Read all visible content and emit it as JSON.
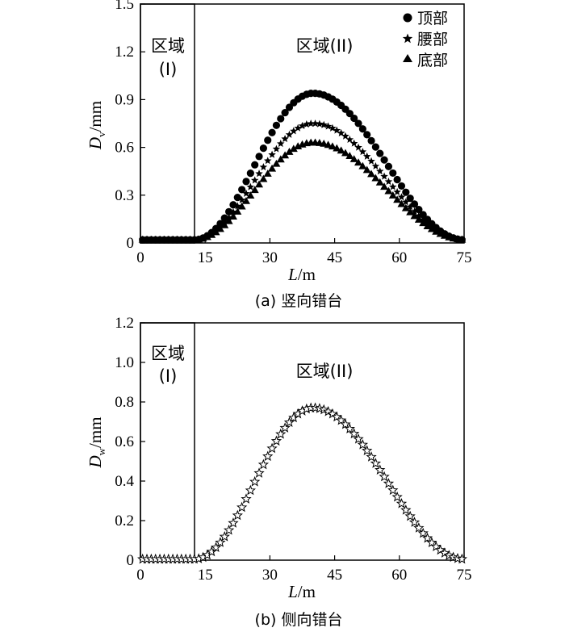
{
  "chart_data": [
    {
      "type": "scatter",
      "caption": "(a) 竖向错台",
      "xlabel_main": "L",
      "xlabel_unit": "/m",
      "ylabel_main": "D",
      "ylabel_sub": "v",
      "ylabel_unit": "/mm",
      "xlim": [
        0,
        75
      ],
      "ylim": [
        0,
        1.5
      ],
      "xticks": [
        "0",
        "15",
        "30",
        "45",
        "60",
        "75"
      ],
      "yticks": [
        "0",
        "0.3",
        "0.6",
        "0.9",
        "1.2",
        "1.5"
      ],
      "regions": [
        {
          "label_line1": "区域",
          "label_line2": "(I)"
        },
        {
          "label": "区域(II)"
        }
      ],
      "region_I_boundary_x": 12.6,
      "legend_position": "top-right",
      "series": [
        {
          "name": "顶部",
          "marker": "circle",
          "peak": 0.94,
          "peak_x": 40
        },
        {
          "name": "腰部",
          "marker": "star",
          "peak": 0.75,
          "peak_x": 40
        },
        {
          "name": "底部",
          "marker": "triangle",
          "peak": 0.63,
          "peak_x": 40
        }
      ],
      "baseline": 0.02,
      "x_start": 0.5,
      "x_end": 74.5,
      "x_step": 1
    },
    {
      "type": "scatter",
      "caption": "(b) 侧向错台",
      "xlabel_main": "L",
      "xlabel_unit": "/m",
      "ylabel_main": "D",
      "ylabel_sub": "w",
      "ylabel_unit": "/mm",
      "xlim": [
        0,
        75
      ],
      "ylim": [
        0,
        1.2
      ],
      "xticks": [
        "0",
        "15",
        "30",
        "45",
        "60",
        "75"
      ],
      "yticks": [
        "0",
        "0.2",
        "0.4",
        "0.6",
        "0.8",
        "1.0",
        "1.2"
      ],
      "regions": [
        {
          "label_line1": "区域",
          "label_line2": "(I)"
        },
        {
          "label": "区域(II)"
        }
      ],
      "region_I_boundary_x": 12.6,
      "series": [
        {
          "marker": "star-open",
          "peak": 0.77,
          "peak_x": 40
        }
      ],
      "baseline": 0.005,
      "x_start": 0.5,
      "x_end": 74.5,
      "x_step": 1
    }
  ]
}
